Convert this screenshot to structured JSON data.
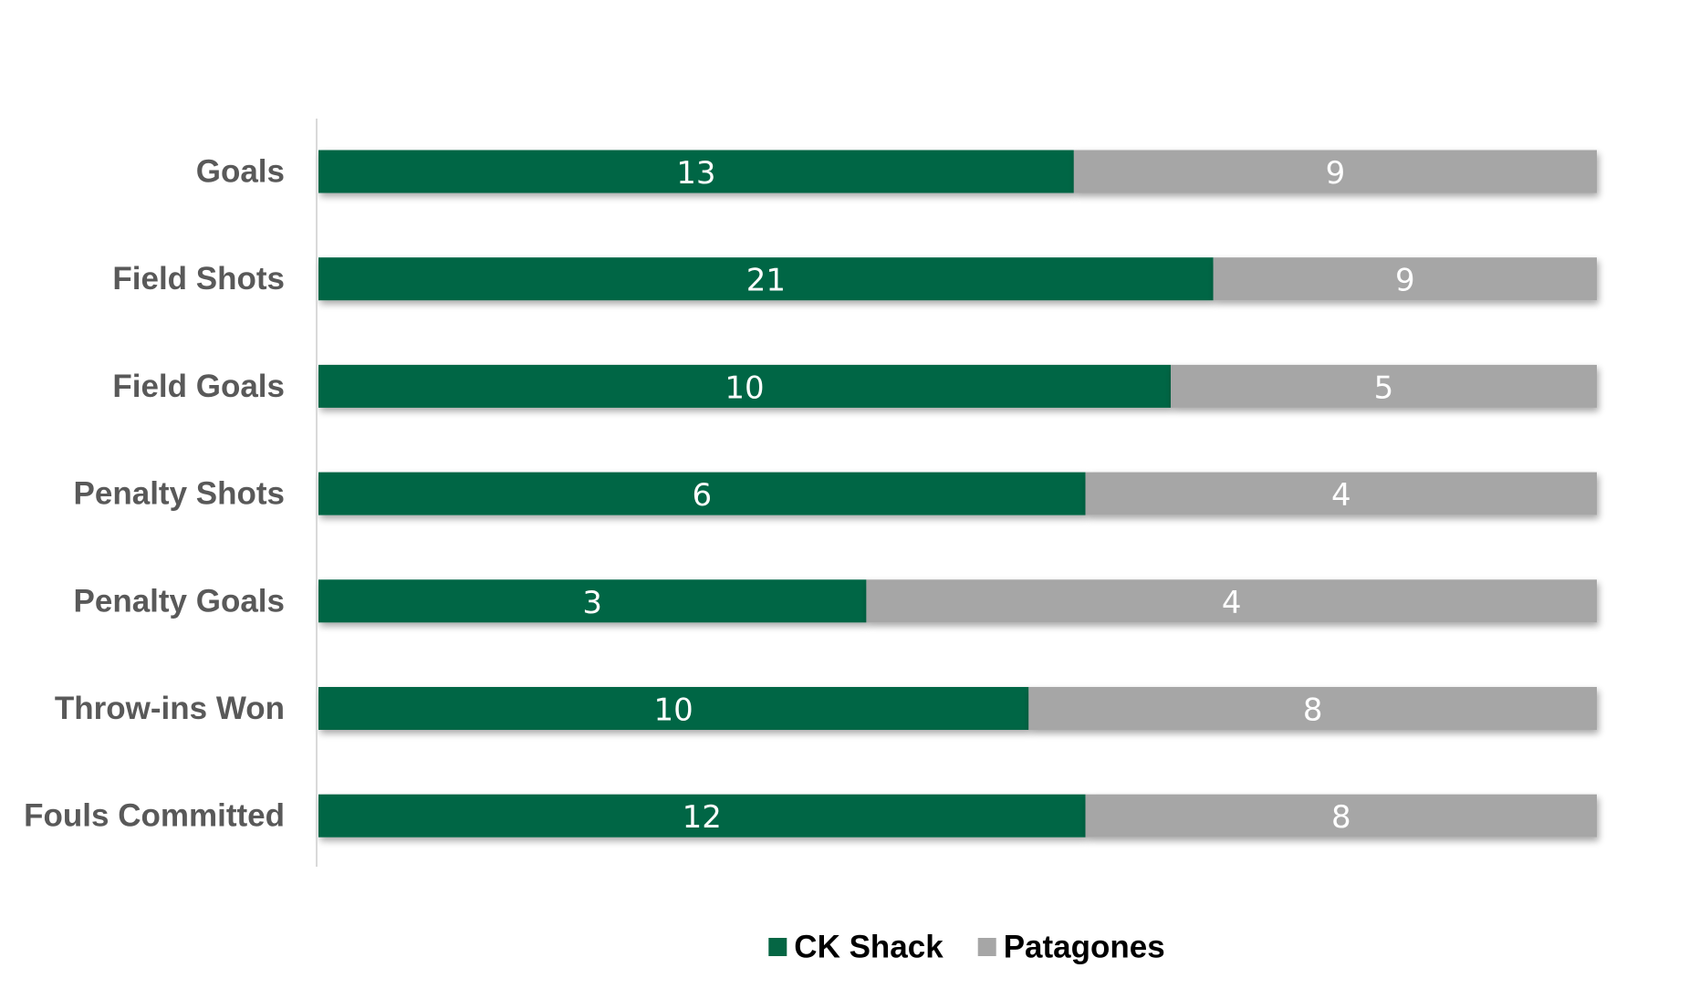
{
  "chart_data": {
    "type": "bar",
    "orientation": "horizontal",
    "stacking": "percent",
    "categories": [
      "Goals",
      "Field Shots",
      "Field Goals",
      "Penalty Shots",
      "Penalty Goals",
      "Throw-ins Won",
      "Fouls Committed"
    ],
    "series": [
      {
        "name": "CK Shack",
        "values": [
          13,
          21,
          10,
          6,
          3,
          10,
          12
        ],
        "color": "#056644"
      },
      {
        "name": "Patagones",
        "values": [
          9,
          9,
          5,
          4,
          4,
          8,
          8
        ],
        "color": "#a6a6a6"
      }
    ],
    "legend_position": "bottom",
    "data_labels": true,
    "grid": false
  }
}
